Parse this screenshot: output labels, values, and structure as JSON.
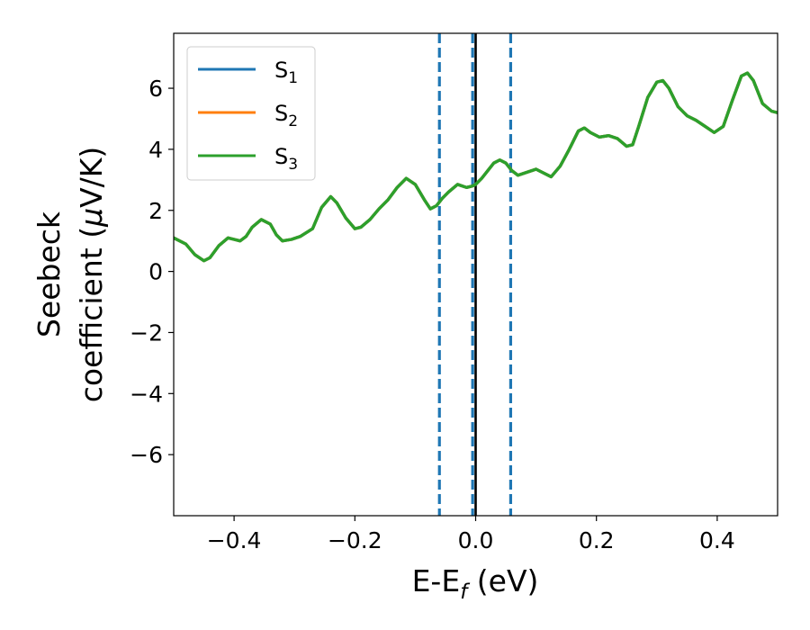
{
  "chart_data": {
    "type": "line",
    "xlabel": "E-E",
    "xlabel_sub": "f",
    "xlabel_unit": " (eV)",
    "ylabel_line1": "Seebeck",
    "ylabel_line2_pre": "coefficient  (",
    "ylabel_mu": "μ",
    "ylabel_line2_post": "V/K)",
    "xlim": [
      -0.5,
      0.5
    ],
    "ylim": [
      -8,
      7.8
    ],
    "xticks": [
      -0.4,
      -0.2,
      0.0,
      0.2,
      0.4
    ],
    "xtick_labels": [
      "−0.4",
      "−0.2",
      "0.0",
      "0.2",
      "0.4"
    ],
    "yticks": [
      -6,
      -4,
      -2,
      0,
      2,
      4,
      6
    ],
    "ytick_labels": [
      "−6",
      "−4",
      "−2",
      "0",
      "2",
      "4",
      "6"
    ],
    "grid": false,
    "legend_position": "top-left",
    "vertical_lines": [
      {
        "x": -0.06,
        "style": "dashed",
        "color": "#1f77b4"
      },
      {
        "x": -0.005,
        "style": "dashed",
        "color": "#1f77b4"
      },
      {
        "x": 0.058,
        "style": "dashed",
        "color": "#1f77b4"
      },
      {
        "x": 0.0,
        "style": "solid",
        "color": "#000000"
      }
    ],
    "x": [
      -0.5,
      -0.48,
      -0.465,
      -0.45,
      -0.44,
      -0.425,
      -0.41,
      -0.4,
      -0.39,
      -0.38,
      -0.37,
      -0.355,
      -0.34,
      -0.33,
      -0.32,
      -0.305,
      -0.29,
      -0.27,
      -0.255,
      -0.24,
      -0.23,
      -0.215,
      -0.2,
      -0.19,
      -0.175,
      -0.16,
      -0.145,
      -0.13,
      -0.115,
      -0.1,
      -0.085,
      -0.075,
      -0.065,
      -0.055,
      -0.045,
      -0.03,
      -0.015,
      -0.005,
      0.0,
      0.01,
      0.02,
      0.03,
      0.04,
      0.05,
      0.06,
      0.07,
      0.085,
      0.1,
      0.11,
      0.125,
      0.14,
      0.155,
      0.17,
      0.18,
      0.19,
      0.205,
      0.22,
      0.235,
      0.25,
      0.26,
      0.27,
      0.285,
      0.3,
      0.31,
      0.32,
      0.335,
      0.35,
      0.365,
      0.38,
      0.395,
      0.41,
      0.425,
      0.44,
      0.45,
      0.46,
      0.475,
      0.49,
      0.5
    ],
    "series": [
      {
        "name": "S",
        "sub": "1",
        "color": "#1f77b4",
        "values": [
          1.1,
          0.9,
          0.55,
          0.35,
          0.45,
          0.85,
          1.1,
          1.05,
          1.0,
          1.15,
          1.45,
          1.7,
          1.55,
          1.2,
          1.0,
          1.05,
          1.15,
          1.4,
          2.1,
          2.45,
          2.25,
          1.75,
          1.4,
          1.45,
          1.7,
          2.05,
          2.35,
          2.75,
          3.05,
          2.85,
          2.35,
          2.05,
          2.15,
          2.4,
          2.6,
          2.85,
          2.75,
          2.8,
          2.85,
          3.05,
          3.3,
          3.55,
          3.65,
          3.55,
          3.3,
          3.15,
          3.25,
          3.35,
          3.25,
          3.1,
          3.45,
          4.0,
          4.6,
          4.7,
          4.55,
          4.4,
          4.45,
          4.35,
          4.1,
          4.15,
          4.75,
          5.7,
          6.2,
          6.25,
          6.0,
          5.4,
          5.1,
          4.95,
          4.75,
          4.55,
          4.75,
          5.6,
          6.4,
          6.5,
          6.25,
          5.5,
          5.25,
          5.2
        ]
      },
      {
        "name": "S",
        "sub": "2",
        "color": "#ff7f0e",
        "values": [
          1.1,
          0.9,
          0.55,
          0.35,
          0.45,
          0.85,
          1.1,
          1.05,
          1.0,
          1.15,
          1.45,
          1.7,
          1.55,
          1.2,
          1.0,
          1.05,
          1.15,
          1.4,
          2.1,
          2.45,
          2.25,
          1.75,
          1.4,
          1.45,
          1.7,
          2.05,
          2.35,
          2.75,
          3.05,
          2.85,
          2.35,
          2.05,
          2.15,
          2.4,
          2.6,
          2.85,
          2.75,
          2.8,
          2.85,
          3.05,
          3.3,
          3.55,
          3.65,
          3.55,
          3.3,
          3.15,
          3.25,
          3.35,
          3.25,
          3.1,
          3.45,
          4.0,
          4.6,
          4.7,
          4.55,
          4.4,
          4.45,
          4.35,
          4.1,
          4.15,
          4.75,
          5.7,
          6.2,
          6.25,
          6.0,
          5.4,
          5.1,
          4.95,
          4.75,
          4.55,
          4.75,
          5.6,
          6.4,
          6.5,
          6.25,
          5.5,
          5.25,
          5.2
        ]
      },
      {
        "name": "S",
        "sub": "3",
        "color": "#2ca02c",
        "values": [
          1.1,
          0.9,
          0.55,
          0.35,
          0.45,
          0.85,
          1.1,
          1.05,
          1.0,
          1.15,
          1.45,
          1.7,
          1.55,
          1.2,
          1.0,
          1.05,
          1.15,
          1.4,
          2.1,
          2.45,
          2.25,
          1.75,
          1.4,
          1.45,
          1.7,
          2.05,
          2.35,
          2.75,
          3.05,
          2.85,
          2.35,
          2.05,
          2.15,
          2.4,
          2.6,
          2.85,
          2.75,
          2.8,
          2.85,
          3.05,
          3.3,
          3.55,
          3.65,
          3.55,
          3.3,
          3.15,
          3.25,
          3.35,
          3.25,
          3.1,
          3.45,
          4.0,
          4.6,
          4.7,
          4.55,
          4.4,
          4.45,
          4.35,
          4.1,
          4.15,
          4.75,
          5.7,
          6.2,
          6.25,
          6.0,
          5.4,
          5.1,
          4.95,
          4.75,
          4.55,
          4.75,
          5.6,
          6.4,
          6.5,
          6.25,
          5.5,
          5.25,
          5.2
        ]
      }
    ]
  }
}
